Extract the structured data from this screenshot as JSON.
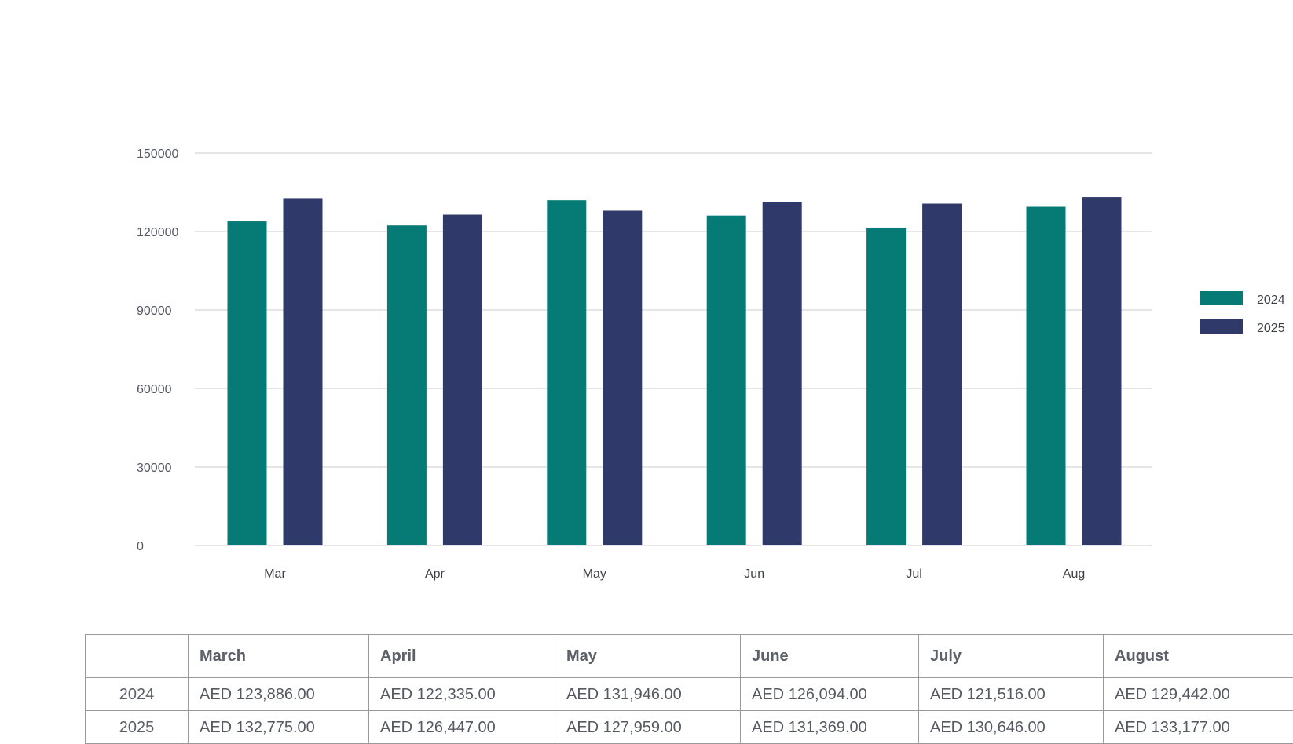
{
  "chart_data": {
    "type": "bar",
    "categories": [
      "Mar",
      "Apr",
      "May",
      "Jun",
      "Jul",
      "Aug"
    ],
    "series": [
      {
        "name": "2024",
        "color": "#067a74",
        "values": [
          123886,
          122335,
          131946,
          126094,
          121516,
          129442
        ]
      },
      {
        "name": "2025",
        "color": "#2f3a6b",
        "values": [
          132775,
          126447,
          127959,
          131369,
          130646,
          133177
        ]
      }
    ],
    "y_ticks": [
      "0",
      "30000",
      "60000",
      "90000",
      "120000",
      "150000"
    ],
    "ylim": [
      0,
      150000
    ],
    "grid": true,
    "legend_position": "right"
  },
  "table": {
    "corner": "",
    "columns": [
      "March",
      "April",
      "May",
      "June",
      "July",
      "August"
    ],
    "rows": [
      {
        "label": "2024",
        "cells": [
          "AED 123,886.00",
          "AED 122,335.00",
          "AED 131,946.00",
          "AED 126,094.00",
          "AED 121,516.00",
          "AED 129,442.00"
        ]
      },
      {
        "label": "2025",
        "cells": [
          "AED 132,775.00",
          "AED 126,447.00",
          "AED 127,959.00",
          "AED 131,369.00",
          "AED 130,646.00",
          "AED 133,177.00"
        ]
      }
    ]
  }
}
